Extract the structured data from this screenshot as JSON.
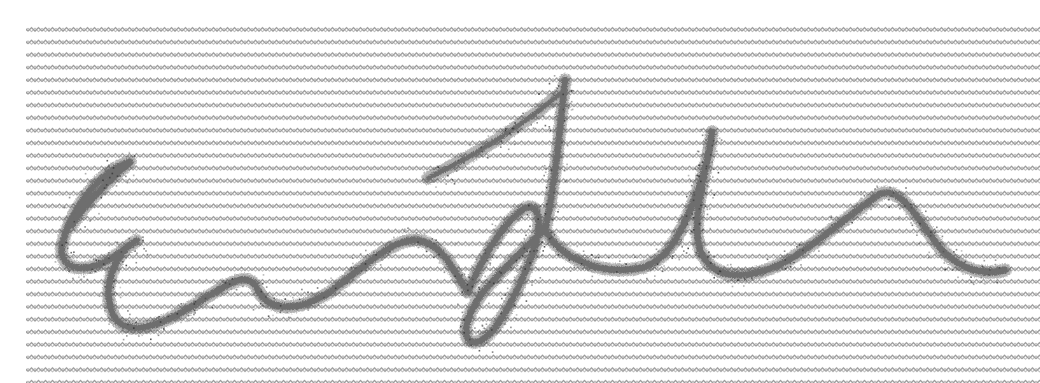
{
  "image": {
    "background": "#ffffff",
    "line_pattern_color": "#9a9a9a",
    "ink_color": "#6e6e6e",
    "ink_shadow_color": "#2f2f2f",
    "signature_icon": "handwritten-signature"
  }
}
